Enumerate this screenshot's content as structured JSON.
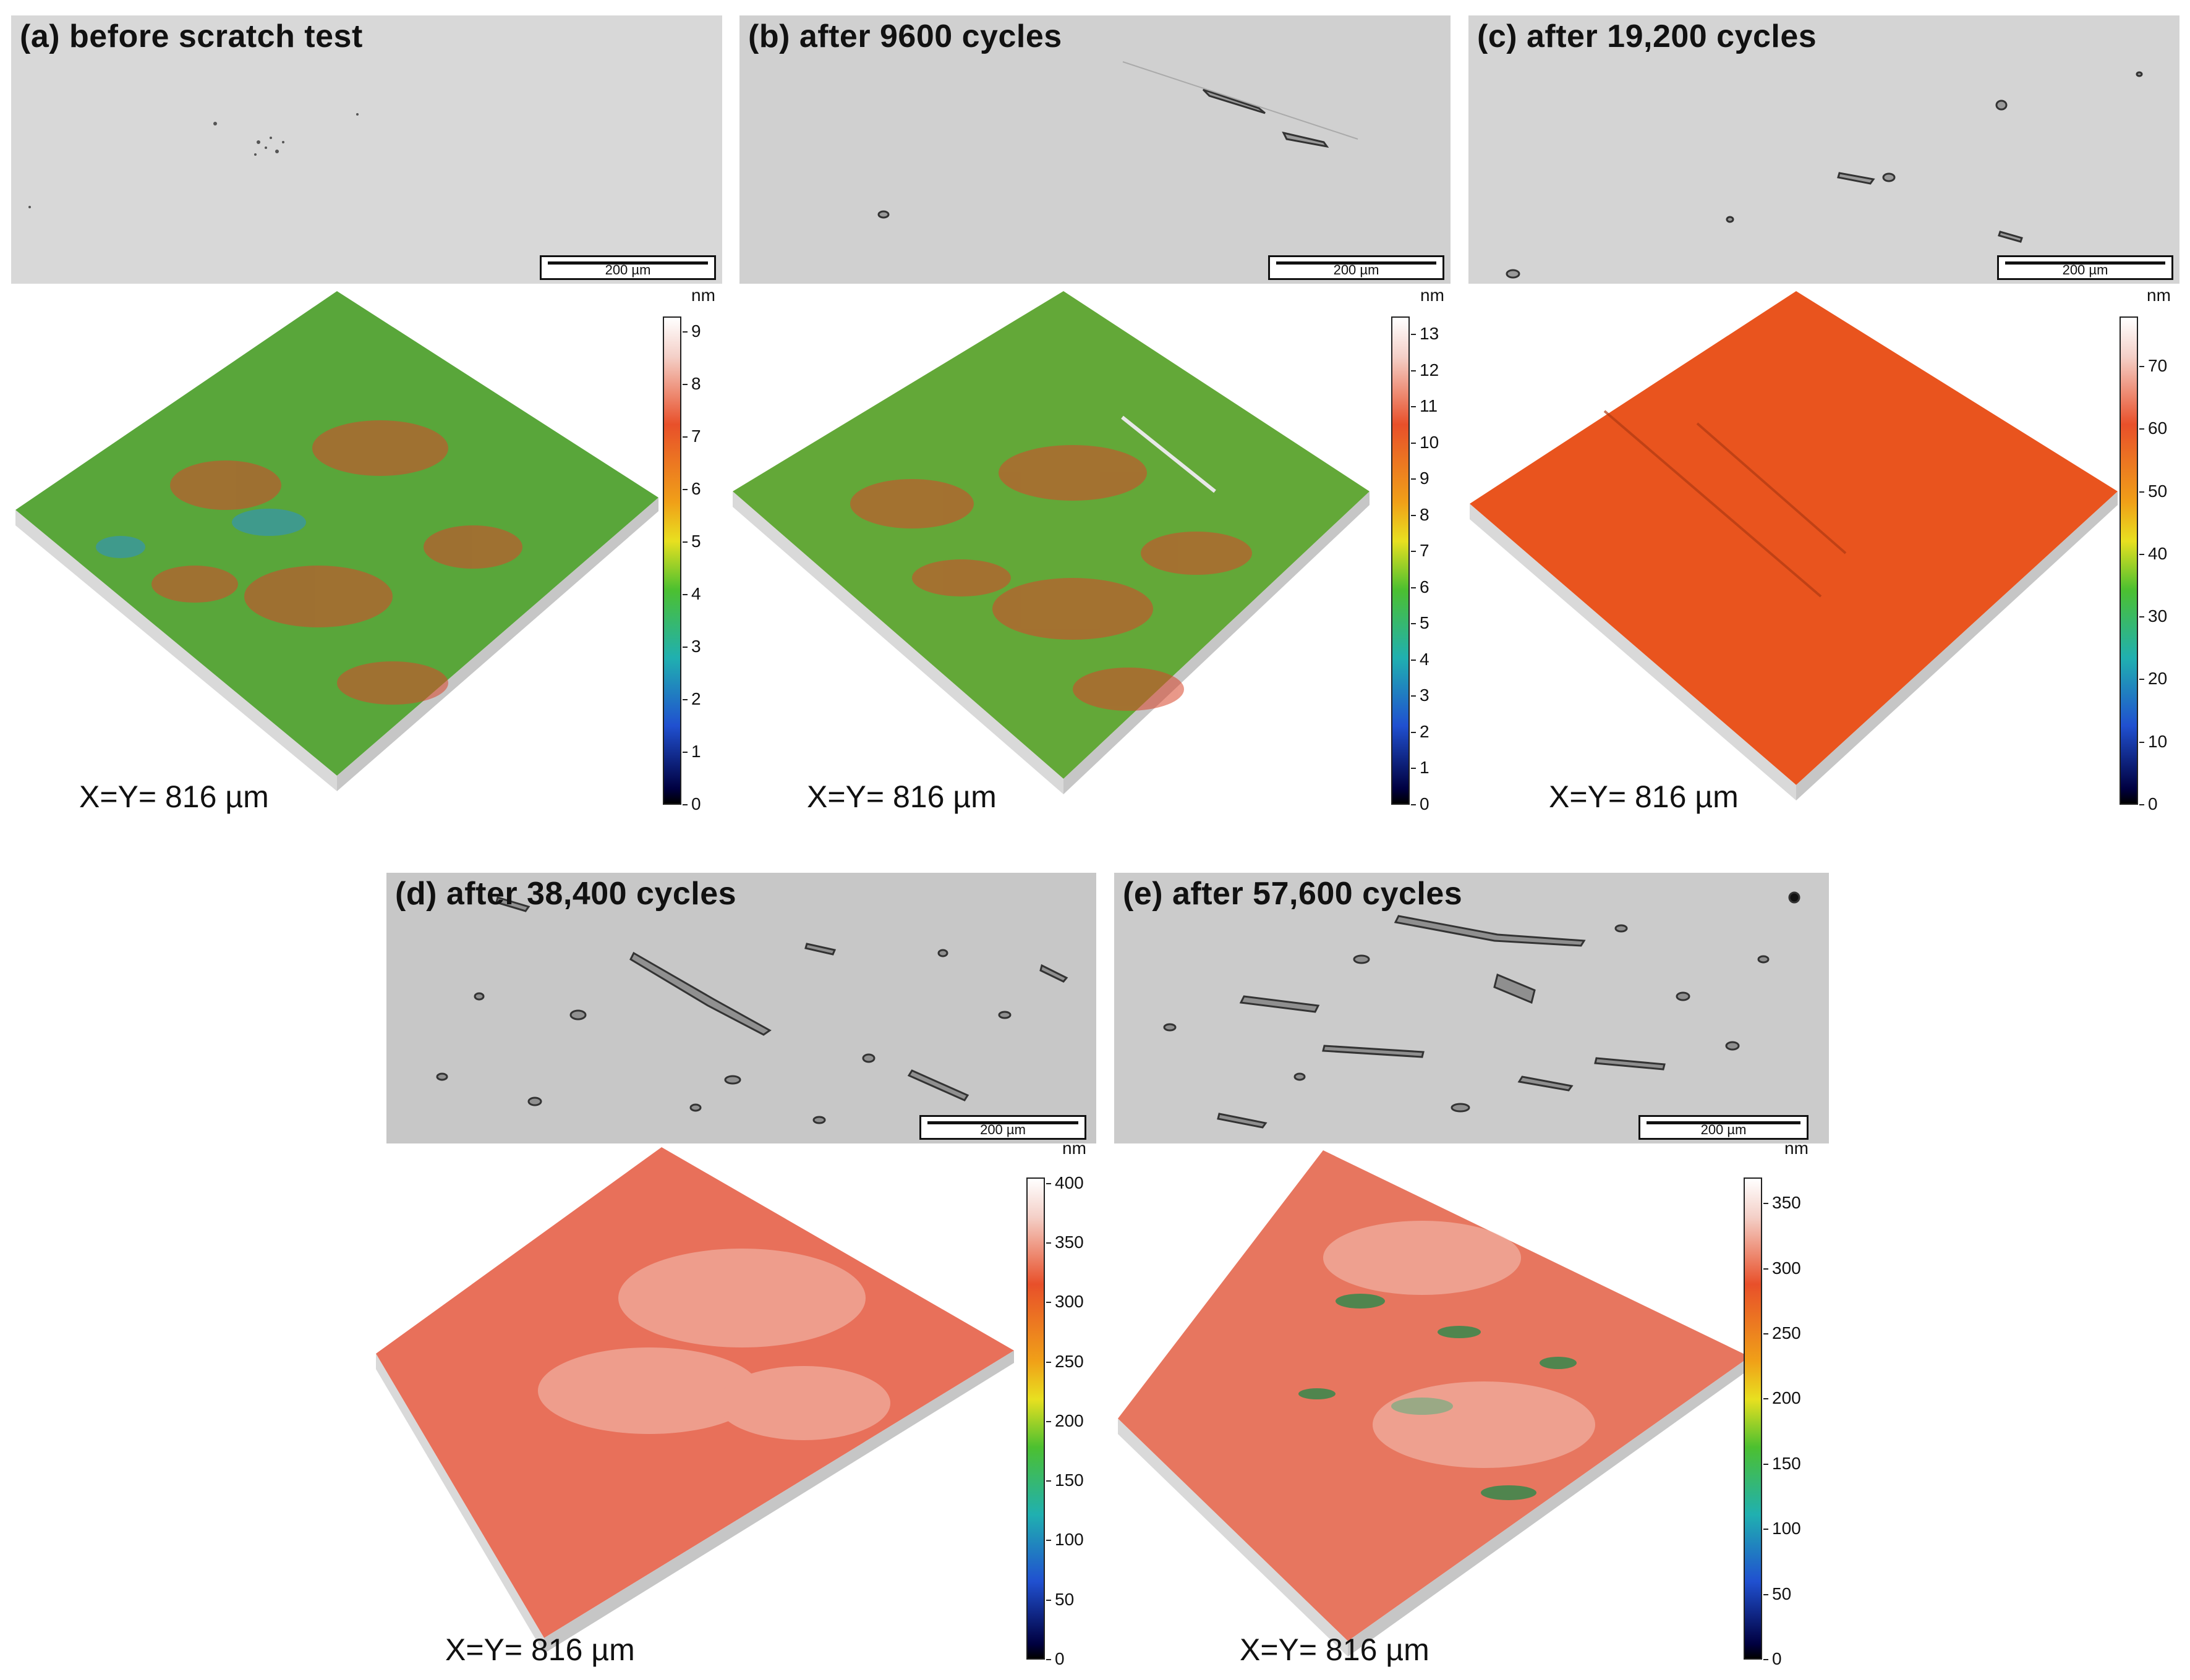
{
  "figure": {
    "panels": [
      {
        "id": "a",
        "label": "(a) before scratch test",
        "scale_bar": "200 µm",
        "unit": "nm",
        "colorbar_ticks": [
          "9",
          "8",
          "7",
          "6",
          "5",
          "4",
          "3",
          "2",
          "1",
          "0"
        ],
        "colorbar_max": 9.3,
        "dimension": "X=Y= 816 µm",
        "surface_color": "#5aa83a",
        "micro_tone": "#d6d6d6"
      },
      {
        "id": "b",
        "label": "(b) after 9600 cycles",
        "scale_bar": "200 µm",
        "unit": "nm",
        "colorbar_ticks": [
          "13",
          "12",
          "11",
          "10",
          "9",
          "8",
          "7",
          "6",
          "5",
          "4",
          "3",
          "2",
          "1",
          "0"
        ],
        "colorbar_max": 13.5,
        "dimension": "X=Y= 816 µm",
        "surface_color": "#6aa838",
        "micro_tone": "#cfcfcf"
      },
      {
        "id": "c",
        "label": "(c) after 19,200 cycles",
        "scale_bar": "200 µm",
        "unit": "nm",
        "colorbar_ticks": [
          "70",
          "60",
          "50",
          "40",
          "30",
          "20",
          "10",
          "0"
        ],
        "colorbar_max": 78,
        "dimension": "X=Y= 816 µm",
        "surface_color": "#e8541f",
        "micro_tone": "#d4d4d4"
      },
      {
        "id": "d",
        "label": "(d) after 38,400 cycles",
        "scale_bar": "200 µm",
        "unit": "nm",
        "colorbar_ticks": [
          "400",
          "350",
          "300",
          "250",
          "200",
          "150",
          "100",
          "50",
          "0"
        ],
        "colorbar_max": 405,
        "dimension": "X=Y= 816 µm",
        "surface_color": "#e86f55",
        "micro_tone": "#c6c6c6"
      },
      {
        "id": "e",
        "label": "(e) after 57,600 cycles",
        "scale_bar": "200 µm",
        "unit": "nm",
        "colorbar_ticks": [
          "350",
          "300",
          "250",
          "200",
          "150",
          "100",
          "50",
          "0"
        ],
        "colorbar_max": 370,
        "dimension": "X=Y= 816 µm",
        "surface_color": "#e7755e",
        "micro_tone": "#cbcbcb"
      }
    ]
  }
}
